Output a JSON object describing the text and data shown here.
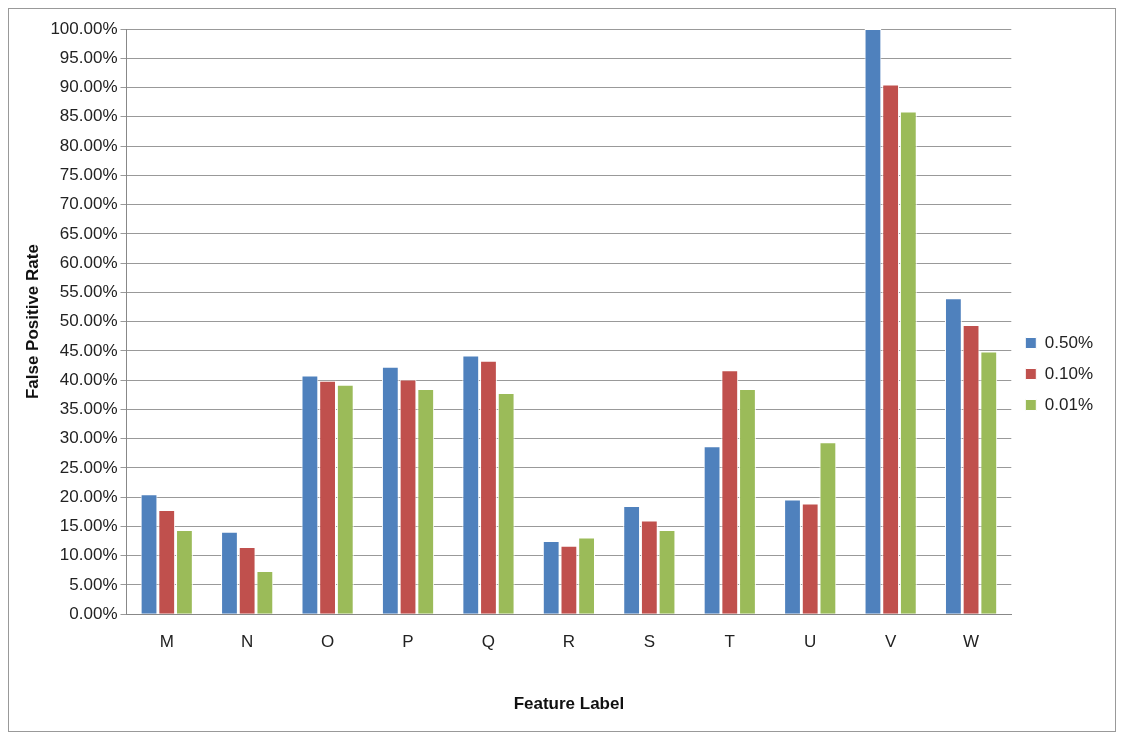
{
  "chart_data": {
    "type": "bar",
    "xlabel": "Feature Label",
    "ylabel": "False Positive Rate",
    "categories": [
      "M",
      "N",
      "O",
      "P",
      "Q",
      "R",
      "S",
      "T",
      "U",
      "V",
      "W"
    ],
    "series": [
      {
        "name": "0.50%",
        "color": "#4f81bd",
        "values": [
          20.5,
          14.1,
          40.8,
          42.3,
          44.2,
          12.5,
          18.5,
          28.7,
          19.6,
          100,
          54.0
        ]
      },
      {
        "name": "0.10%",
        "color": "#c0504d",
        "values": [
          17.8,
          11.5,
          39.9,
          40.1,
          43.3,
          11.7,
          16.0,
          41.7,
          18.9,
          90.5,
          49.4
        ]
      },
      {
        "name": "0.01%",
        "color": "#9bbb59",
        "values": [
          14.4,
          7.4,
          39.2,
          38.5,
          37.8,
          13.1,
          14.4,
          38.5,
          29.4,
          85.9,
          44.9
        ]
      }
    ],
    "ylim": [
      0,
      100
    ],
    "yticks": [
      {
        "value": 0,
        "label": "0.00%"
      },
      {
        "value": 5,
        "label": "5.00%"
      },
      {
        "value": 10,
        "label": "10.00%"
      },
      {
        "value": 15,
        "label": "15.00%"
      },
      {
        "value": 20,
        "label": "20.00%"
      },
      {
        "value": 25,
        "label": "25.00%"
      },
      {
        "value": 30,
        "label": "30.00%"
      },
      {
        "value": 35,
        "label": "35.00%"
      },
      {
        "value": 40,
        "label": "40.00%"
      },
      {
        "value": 45,
        "label": "45.00%"
      },
      {
        "value": 50,
        "label": "50.00%"
      },
      {
        "value": 55,
        "label": "55.00%"
      },
      {
        "value": 60,
        "label": "60.00%"
      },
      {
        "value": 65,
        "label": "65.00%"
      },
      {
        "value": 70,
        "label": "70.00%"
      },
      {
        "value": 75,
        "label": "75.00%"
      },
      {
        "value": 80,
        "label": "80.00%"
      },
      {
        "value": 85,
        "label": "85.00%"
      },
      {
        "value": 90,
        "label": "90.00%"
      },
      {
        "value": 95,
        "label": "95.00%"
      },
      {
        "value": 100,
        "label": "100.00%"
      }
    ],
    "grid": "y",
    "legend": "right"
  }
}
